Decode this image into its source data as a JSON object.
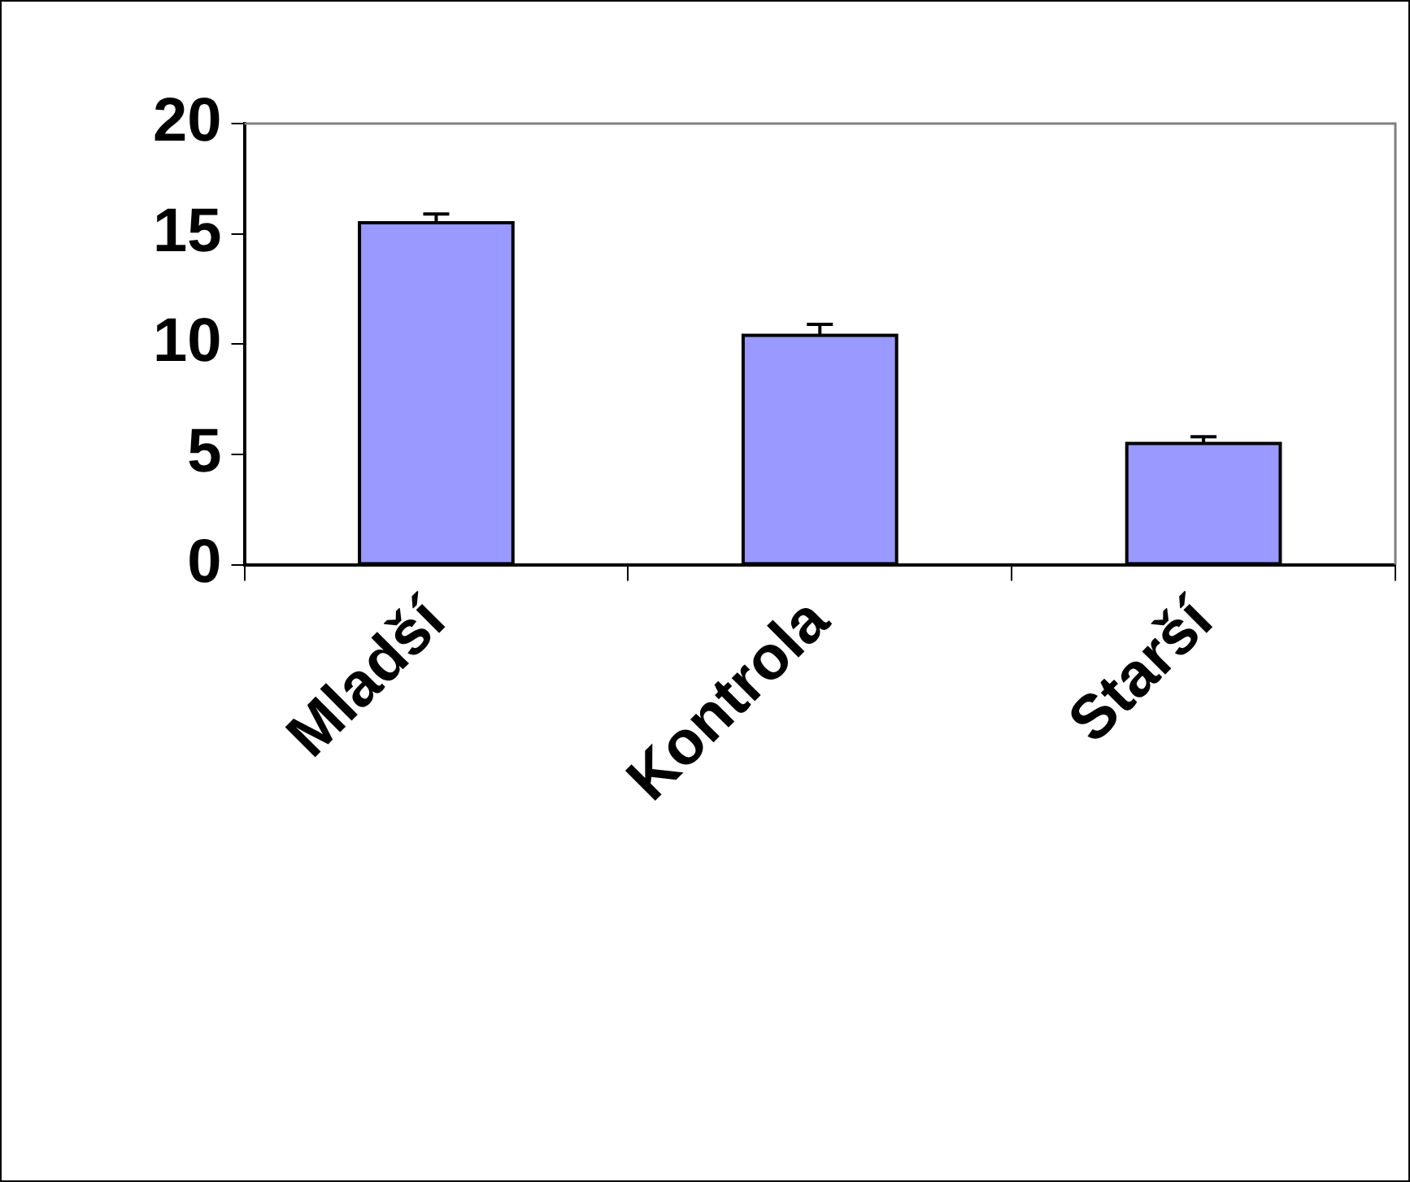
{
  "chart_data": {
    "type": "bar",
    "categories": [
      "Mladší",
      "Kontrola",
      "Starší"
    ],
    "values": [
      15.5,
      10.4,
      5.5
    ],
    "errors": [
      [
        15.5,
        15.9
      ],
      [
        10.4,
        10.9
      ],
      [
        5.5,
        5.8
      ]
    ],
    "color": "#9999ff",
    "ylim": [
      0,
      20
    ],
    "yticks": [
      0,
      5,
      10,
      15,
      20
    ],
    "grid": false,
    "legend": false
  }
}
